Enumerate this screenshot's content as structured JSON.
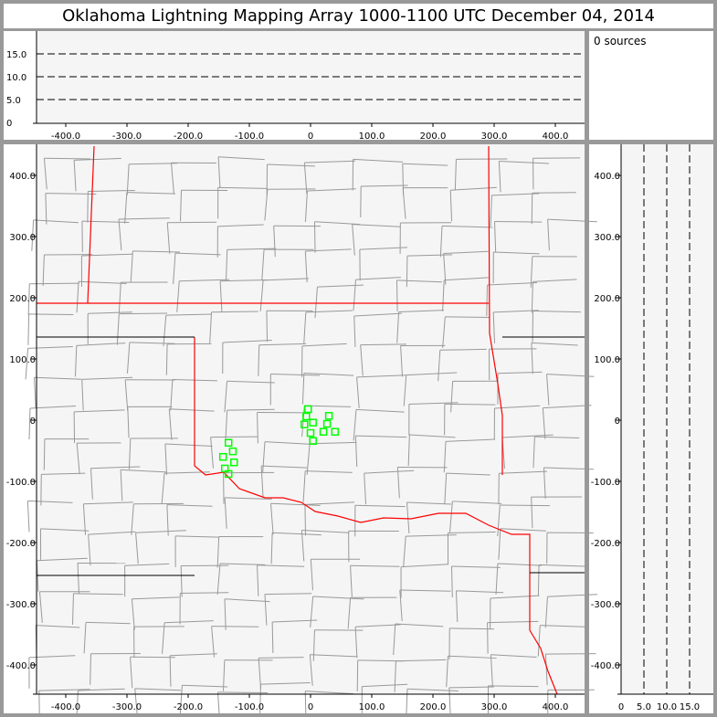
{
  "title": "Oklahoma Lightning Mapping Array   1000-1100 UTC  December 04, 2014",
  "sources_label": "0 sources",
  "colors": {
    "background": "#999999",
    "plot_bg": "#f5f5f5",
    "state_border": "#ff0000",
    "county_border": "#999999",
    "station": "#00ff00"
  },
  "top_panel": {
    "x_ticks": [
      "-400.0",
      "-300.0",
      "-200.0",
      "-100.0",
      "0",
      "100.0",
      "200.0",
      "300.0",
      "400.0"
    ],
    "y_ticks": [
      "0",
      "5.0",
      "10.0",
      "15.0"
    ],
    "dashed_altitudes_km": [
      5,
      10,
      15
    ]
  },
  "main_panel": {
    "x_ticks": [
      "-400.0",
      "-300.0",
      "-200.0",
      "-100.0",
      "0",
      "100.0",
      "200.0",
      "300.0",
      "400.0"
    ],
    "y_ticks": [
      "400.0",
      "300.0",
      "200.0",
      "100.0",
      "0",
      "-100.0",
      "-200.0",
      "-300.0",
      "-400.0"
    ],
    "stations_km": [
      [
        -4,
        18
      ],
      [
        -7,
        6
      ],
      [
        -10,
        -7
      ],
      [
        4,
        -4
      ],
      [
        30,
        7
      ],
      [
        27,
        -6
      ],
      [
        0,
        -21
      ],
      [
        21,
        -19
      ],
      [
        40,
        -19
      ],
      [
        4,
        -34
      ],
      [
        -134,
        -37
      ],
      [
        -127,
        -51
      ],
      [
        -143,
        -60
      ],
      [
        -125,
        -69
      ],
      [
        -140,
        -79
      ],
      [
        -134,
        -88
      ]
    ]
  },
  "right_panel": {
    "x_ticks": [
      "0",
      "5.0",
      "10.0",
      "15.0"
    ],
    "y_ticks": [
      "400.0",
      "300.0",
      "200.0",
      "100.0",
      "0",
      "-100.0",
      "-200.0",
      "-300.0",
      "-400.0"
    ],
    "dashed_altitudes_km": [
      5,
      10,
      15
    ]
  }
}
